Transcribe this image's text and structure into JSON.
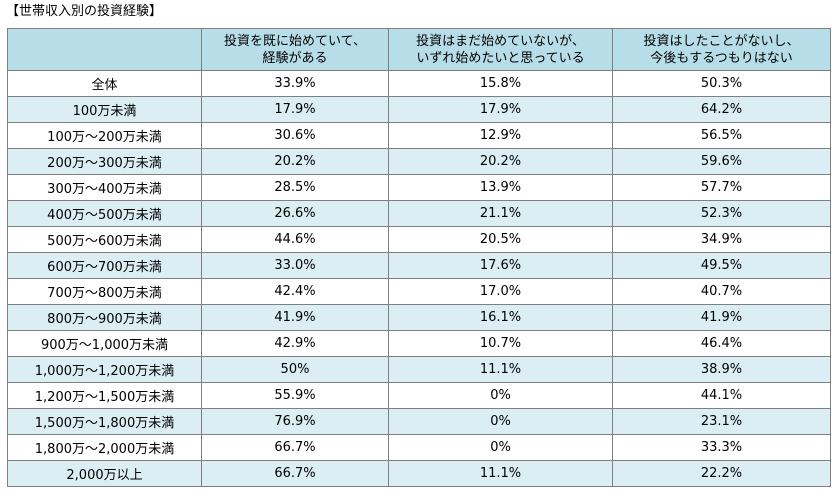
{
  "title": "【世帯収入別の投資経験】",
  "header": {
    "blank": "",
    "columns": [
      {
        "line1": "投資を既に始めていて、",
        "line2": "経験がある"
      },
      {
        "line1": "投資はまだ始めていないが、",
        "line2": "いずれ始めたいと思っている"
      },
      {
        "line1": "投資はしたことがないし、",
        "line2": "今後もするつもりはない"
      }
    ]
  },
  "rows": [
    {
      "label": "全体",
      "a": "33.9%",
      "b": "15.8%",
      "c": "50.3%"
    },
    {
      "label": "100万未満",
      "a": "17.9%",
      "b": "17.9%",
      "c": "64.2%"
    },
    {
      "label": "100万～200万未満",
      "a": "30.6%",
      "b": "12.9%",
      "c": "56.5%"
    },
    {
      "label": "200万～300万未満",
      "a": "20.2%",
      "b": "20.2%",
      "c": "59.6%"
    },
    {
      "label": "300万～400万未満",
      "a": "28.5%",
      "b": "13.9%",
      "c": "57.7%"
    },
    {
      "label": "400万～500万未満",
      "a": "26.6%",
      "b": "21.1%",
      "c": "52.3%"
    },
    {
      "label": "500万～600万未満",
      "a": "44.6%",
      "b": "20.5%",
      "c": "34.9%"
    },
    {
      "label": "600万～700万未満",
      "a": "33.0%",
      "b": "17.6%",
      "c": "49.5%"
    },
    {
      "label": "700万～800万未満",
      "a": "42.4%",
      "b": "17.0%",
      "c": "40.7%"
    },
    {
      "label": "800万～900万未満",
      "a": "41.9%",
      "b": "16.1%",
      "c": "41.9%"
    },
    {
      "label": "900万～1,000万未満",
      "a": "42.9%",
      "b": "10.7%",
      "c": "46.4%"
    },
    {
      "label": "1,000万～1,200万未満",
      "a": "50%",
      "b": "11.1%",
      "c": "38.9%"
    },
    {
      "label": "1,200万～1,500万未満",
      "a": "55.9%",
      "b": "0%",
      "c": "44.1%"
    },
    {
      "label": "1,500万～1,800万未満",
      "a": "76.9%",
      "b": "0%",
      "c": "23.1%"
    },
    {
      "label": "1,800万～2,000万未満",
      "a": "66.7%",
      "b": "0%",
      "c": "33.3%"
    },
    {
      "label": "2,000万以上",
      "a": "66.7%",
      "b": "11.1%",
      "c": "22.2%"
    }
  ]
}
